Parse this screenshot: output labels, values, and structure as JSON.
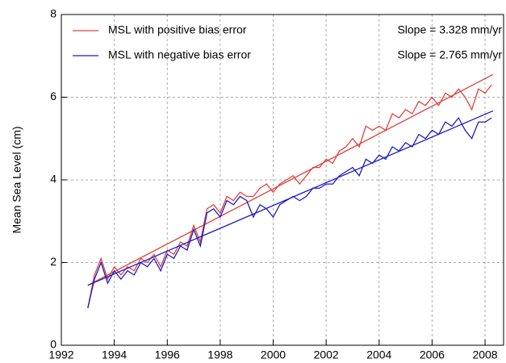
{
  "chart_data": {
    "type": "line",
    "y_label": "Mean Sea Level (cm)",
    "x": [
      1993.0,
      1993.25,
      1993.5,
      1993.75,
      1994.0,
      1994.25,
      1994.5,
      1994.75,
      1995.0,
      1995.25,
      1995.5,
      1995.75,
      1996.0,
      1996.25,
      1996.5,
      1996.75,
      1997.0,
      1997.25,
      1997.5,
      1997.75,
      1998.0,
      1998.25,
      1998.5,
      1998.75,
      1999.0,
      1999.25,
      1999.5,
      1999.75,
      2000.0,
      2000.25,
      2000.5,
      2000.75,
      2001.0,
      2001.25,
      2001.5,
      2001.75,
      2002.0,
      2002.25,
      2002.5,
      2002.75,
      2003.0,
      2003.25,
      2003.5,
      2003.75,
      2004.0,
      2004.25,
      2004.5,
      2004.75,
      2005.0,
      2005.25,
      2005.5,
      2005.75,
      2006.0,
      2006.25,
      2006.5,
      2006.75,
      2007.0,
      2007.25,
      2007.5,
      2007.75,
      2008.0,
      2008.25
    ],
    "trend_x": [
      1993.0,
      2008.3
    ],
    "series": [
      {
        "name": "MSL with positive bias error",
        "color": "#e0403a",
        "slope_label": "Slope = 3.328 mm/yr",
        "values": [
          0.9,
          1.7,
          2.1,
          1.6,
          1.9,
          1.7,
          1.9,
          1.8,
          2.1,
          2.0,
          2.2,
          1.9,
          2.3,
          2.2,
          2.5,
          2.4,
          2.9,
          2.5,
          3.3,
          3.4,
          3.2,
          3.6,
          3.5,
          3.7,
          3.6,
          3.6,
          3.8,
          3.9,
          3.7,
          3.9,
          4.0,
          4.1,
          3.9,
          4.1,
          4.3,
          4.3,
          4.5,
          4.4,
          4.7,
          4.8,
          5.0,
          4.8,
          5.3,
          5.2,
          5.3,
          5.2,
          5.6,
          5.5,
          5.7,
          5.6,
          5.9,
          5.8,
          6.0,
          5.8,
          6.1,
          6.0,
          6.2,
          6.0,
          5.7,
          6.2,
          6.1,
          6.3
        ],
        "trend": [
          1.45,
          6.55
        ]
      },
      {
        "name": "MSL with negative bias error",
        "color": "#1a1ac8",
        "slope_label": "Slope = 2.765 mm/yr",
        "values": [
          0.9,
          1.6,
          2.0,
          1.5,
          1.8,
          1.6,
          1.8,
          1.7,
          2.0,
          1.9,
          2.1,
          1.8,
          2.2,
          2.1,
          2.4,
          2.3,
          2.8,
          2.4,
          3.2,
          3.3,
          3.1,
          3.5,
          3.4,
          3.6,
          3.5,
          3.1,
          3.4,
          3.3,
          3.1,
          3.4,
          3.5,
          3.6,
          3.5,
          3.6,
          3.8,
          3.8,
          3.9,
          3.9,
          4.1,
          4.2,
          4.3,
          4.1,
          4.5,
          4.4,
          4.6,
          4.5,
          4.8,
          4.7,
          4.9,
          4.8,
          5.1,
          5.0,
          5.2,
          5.1,
          5.4,
          5.3,
          5.5,
          5.2,
          5.0,
          5.4,
          5.4,
          5.5
        ],
        "trend": [
          1.45,
          5.67
        ]
      }
    ],
    "xlim": [
      1992,
      2008.7
    ],
    "ylim": [
      0,
      8
    ],
    "xticks": [
      1992,
      1994,
      1996,
      1998,
      2000,
      2002,
      2004,
      2006,
      2008
    ],
    "yticks": [
      0,
      2,
      4,
      6,
      8
    ],
    "grid": true
  }
}
